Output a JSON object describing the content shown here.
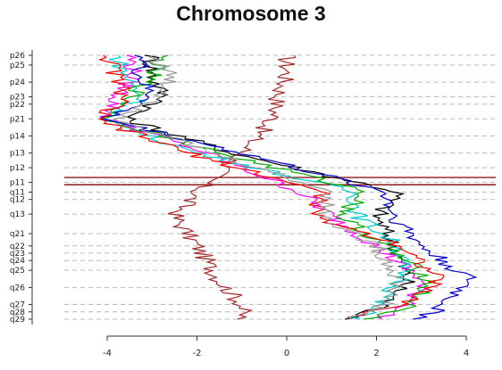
{
  "chart_data": {
    "type": "line",
    "title": "Chromosome 3",
    "xlim": [
      -4.4,
      4.3
    ],
    "x_ticks": [
      -4,
      -2,
      0,
      2,
      4
    ],
    "y_axis": "chromosome bands",
    "bands": [
      {
        "label": "p26",
        "pos": 0.0
      },
      {
        "label": "p25",
        "pos": 0.04
      },
      {
        "label": "p24",
        "pos": 0.11
      },
      {
        "label": "p23",
        "pos": 0.17
      },
      {
        "label": "p22",
        "pos": 0.2
      },
      {
        "label": "p21",
        "pos": 0.26
      },
      {
        "label": "p14",
        "pos": 0.33
      },
      {
        "label": "p13",
        "pos": 0.4
      },
      {
        "label": "p12",
        "pos": 0.46
      },
      {
        "label": "p11",
        "pos": 0.52
      },
      {
        "label": "q11",
        "pos": 0.56
      },
      {
        "label": "q12",
        "pos": 0.59
      },
      {
        "label": "q13",
        "pos": 0.65
      },
      {
        "label": "q21",
        "pos": 0.73
      },
      {
        "label": "q22",
        "pos": 0.78
      },
      {
        "label": "q23",
        "pos": 0.81
      },
      {
        "label": "q24",
        "pos": 0.84
      },
      {
        "label": "q25",
        "pos": 0.88
      },
      {
        "label": "q26",
        "pos": 0.95
      },
      {
        "label": "q27",
        "pos": 1.02
      },
      {
        "label": "q28",
        "pos": 1.05
      },
      {
        "label": "q29",
        "pos": 1.08
      }
    ],
    "centromere_lines": [
      0.5,
      0.53
    ],
    "grid": "dashed horizontal lines at band boundaries",
    "series": [
      {
        "color": "#a52a2a",
        "x": [
          0.0,
          0.0,
          -0.2,
          -0.3,
          -1.0,
          -2.0,
          -2.5,
          -2.0,
          -1.5,
          -1.0,
          -1.0
        ]
      },
      {
        "color": "#000000",
        "x": [
          -3.0,
          -3.0,
          -2.7,
          -3.6,
          -1.2,
          2.5,
          2.0,
          2.4,
          2.7,
          2.2,
          1.5
        ]
      },
      {
        "color": "#ff00ff",
        "x": [
          -3.5,
          -3.4,
          -3.8,
          -4.0,
          -1.8,
          0.3,
          1.0,
          2.0,
          3.0,
          2.8,
          2.0
        ]
      },
      {
        "color": "#00cccc",
        "x": [
          -3.8,
          -3.6,
          -3.2,
          -4.2,
          -2.0,
          1.5,
          1.6,
          2.5,
          2.6,
          2.0,
          1.6
        ]
      },
      {
        "color": "#00aa00",
        "x": [
          -2.8,
          -3.0,
          -3.5,
          -4.0,
          -1.5,
          1.8,
          1.2,
          2.2,
          3.2,
          2.8,
          1.8
        ]
      },
      {
        "color": "#0000cc",
        "x": [
          -3.2,
          -3.3,
          -3.0,
          -4.1,
          -1.0,
          2.2,
          2.4,
          3.0,
          4.1,
          3.5,
          3.0
        ]
      },
      {
        "color": "#ff0000",
        "x": [
          -4.0,
          -3.8,
          -3.6,
          -4.3,
          -2.2,
          0.8,
          0.6,
          2.6,
          3.4,
          2.6,
          1.2
        ]
      },
      {
        "color": "#999999",
        "x": [
          -3.0,
          -2.6,
          -2.8,
          -3.7,
          -1.7,
          1.0,
          0.8,
          2.0,
          2.5,
          2.2,
          1.4
        ]
      }
    ],
    "series_pos": [
      0.0,
      0.08,
      0.18,
      0.26,
      0.4,
      0.56,
      0.66,
      0.78,
      0.92,
      1.02,
      1.08
    ]
  }
}
